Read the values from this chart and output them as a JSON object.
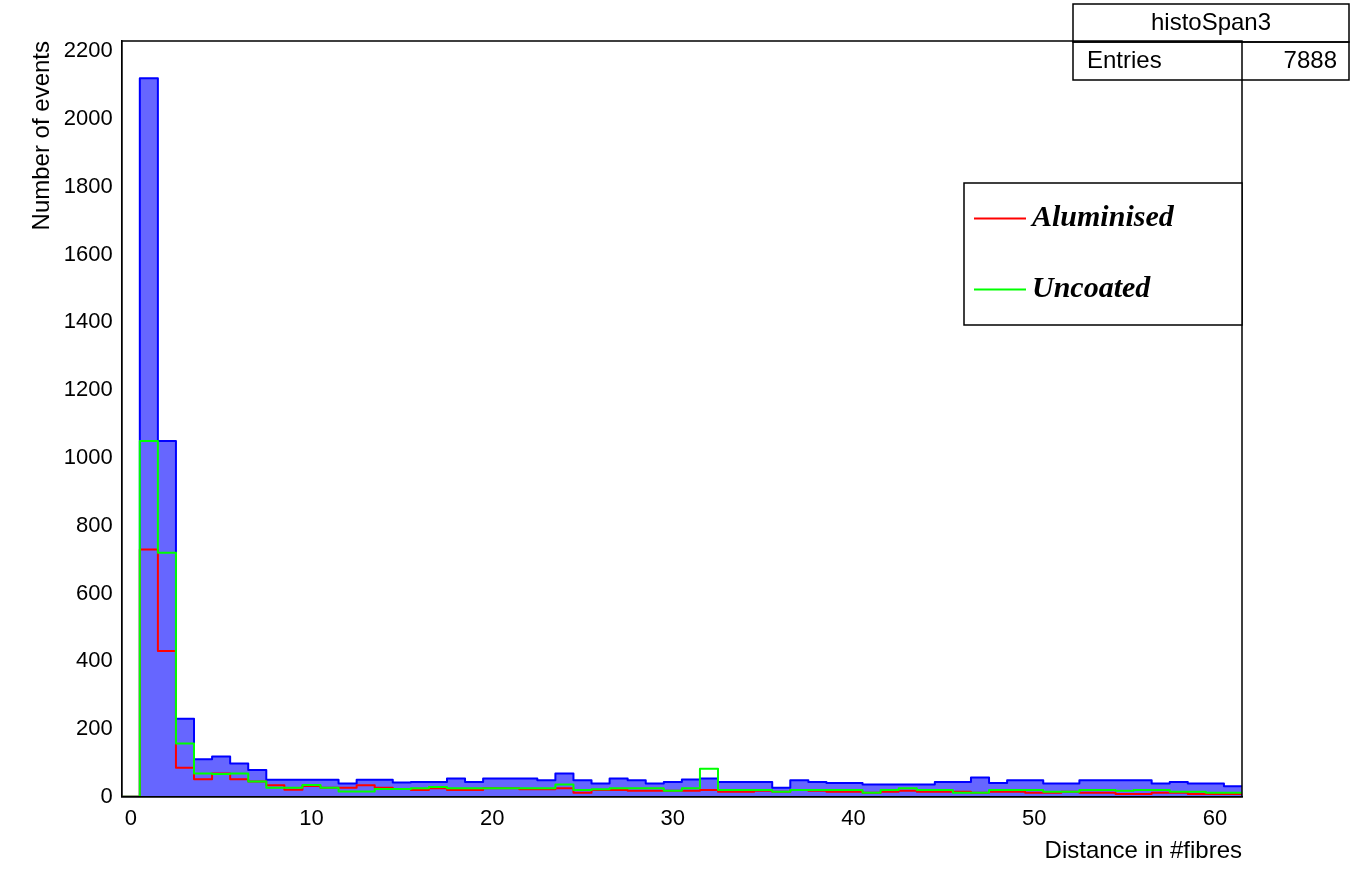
{
  "chart_data": {
    "type": "histogram",
    "xlabel": "Distance in #fibres",
    "ylabel": "Number of events",
    "bins": [
      -0.5,
      0.5,
      1.5,
      2.5,
      3.5,
      4.5,
      5.5,
      6.5,
      7.5,
      8.5,
      9.5,
      10.5,
      11.5,
      12.5,
      13.5,
      14.5,
      15.5,
      16.5,
      17.5,
      18.5,
      19.5,
      20.5,
      21.5,
      22.5,
      23.5,
      24.5,
      25.5,
      26.5,
      27.5,
      28.5,
      29.5,
      30.5,
      31.5,
      32.5,
      33.5,
      34.5,
      35.5,
      36.5,
      37.5,
      38.5,
      39.5,
      40.5,
      41.5,
      42.5,
      43.5,
      44.5,
      45.5,
      46.5,
      47.5,
      48.5,
      49.5,
      50.5,
      51.5,
      52.5,
      53.5,
      54.5,
      55.5,
      56.5,
      57.5,
      58.5,
      59.5,
      60.5,
      61.5
    ],
    "series": [
      {
        "color": "#0000ff",
        "values": [
          0,
          2120,
          1050,
          230,
          111,
          119,
          98,
          79,
          50,
          50,
          50,
          50,
          39,
          50,
          50,
          42,
          44,
          44,
          54,
          44,
          54,
          54,
          54,
          49,
          69,
          49,
          39,
          54,
          49,
          39,
          44,
          51,
          54,
          44,
          44,
          44,
          27,
          49,
          44,
          41,
          41,
          36,
          36,
          36,
          36,
          44,
          44,
          57,
          41,
          49,
          49,
          39,
          39,
          49,
          49,
          49,
          49,
          39,
          44,
          39,
          39,
          31
        ]
      },
      {
        "name": "Aluminised",
        "color": "#ff0000",
        "values": [
          0,
          730,
          430,
          86,
          52,
          69,
          52,
          45,
          34,
          21,
          32,
          27,
          27,
          34,
          27,
          23,
          20,
          25,
          20,
          20,
          25,
          25,
          22,
          22,
          25,
          12,
          20,
          20,
          18,
          18,
          18,
          18,
          20,
          15,
          15,
          18,
          15,
          20,
          18,
          15,
          15,
          12,
          15,
          18,
          15,
          15,
          15,
          12,
          15,
          15,
          12,
          12,
          15,
          12,
          12,
          8,
          8,
          12,
          12,
          8,
          8,
          8
        ]
      },
      {
        "name": "Uncoated",
        "color": "#00ff00",
        "values": [
          0,
          1050,
          720,
          157,
          69,
          67,
          69,
          45,
          27,
          27,
          35,
          27,
          16,
          16,
          23,
          23,
          25,
          29,
          25,
          25,
          25,
          25,
          25,
          25,
          36,
          20,
          22,
          25,
          25,
          25,
          18,
          25,
          83,
          20,
          20,
          20,
          15,
          20,
          20,
          20,
          20,
          12,
          20,
          25,
          20,
          20,
          12,
          12,
          20,
          20,
          20,
          15,
          15,
          20,
          20,
          18,
          20,
          20,
          15,
          15,
          12,
          12
        ]
      }
    ],
    "xlim": [
      -0.5,
      61.5
    ],
    "xticks": [
      0,
      10,
      20,
      30,
      40,
      50,
      60
    ],
    "ylim": [
      0,
      2230
    ],
    "yticks": [
      0,
      200,
      400,
      600,
      800,
      1000,
      1200,
      1400,
      1600,
      1800,
      2000,
      2200
    ],
    "grid": false,
    "legend": "top right",
    "annotations": [
      "histoSpan3",
      "Entries 7888"
    ]
  }
}
